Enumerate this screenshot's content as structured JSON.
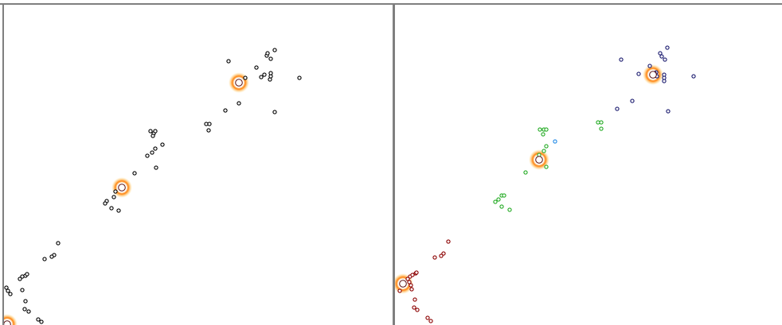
{
  "colors": {
    "border": "#7f7f7f",
    "background": "#ffffff",
    "point_default": "#000000",
    "cluster_red": "#8b0000",
    "cluster_green": "#22aa22",
    "cluster_blue": "#1a1a6e",
    "cluster_cyan": "#1e88e5",
    "halo": "#ff8a00"
  },
  "chart_data": [
    {
      "type": "scatter",
      "title": "",
      "xlabel": "",
      "ylabel": "",
      "grid": false,
      "xlim": [
        0,
        488
      ],
      "ylim": [
        0,
        403
      ],
      "series": [
        {
          "color": "#000000",
          "points": [
            [
              282,
              71
            ],
            [
              330,
              64
            ],
            [
              331,
              61
            ],
            [
              335,
              68
            ],
            [
              340,
              57
            ],
            [
              371,
              92
            ],
            [
              303,
              92
            ],
            [
              317,
              79
            ],
            [
              323,
              91
            ],
            [
              327,
              88
            ],
            [
              334,
              94
            ],
            [
              335,
              90
            ],
            [
              335,
              86
            ],
            [
              340,
              135
            ],
            [
              295,
              124
            ],
            [
              278,
              133
            ],
            [
              254,
              150
            ],
            [
              258,
              150
            ],
            [
              257,
              158
            ],
            [
              184,
              159
            ],
            [
              188,
              162
            ],
            [
              190,
              159
            ],
            [
              187,
              165
            ],
            [
              199,
              176
            ],
            [
              190,
              181
            ],
            [
              186,
              186
            ],
            [
              180,
              190
            ],
            [
              191,
              205
            ],
            [
              164,
              212
            ],
            [
              140,
              235
            ],
            [
              138,
              242
            ],
            [
              129,
              247
            ],
            [
              127,
              250
            ],
            [
              135,
              256
            ],
            [
              144,
              259
            ],
            [
              68,
              300
            ],
            [
              63,
              315
            ],
            [
              60,
              317
            ],
            [
              51,
              320
            ],
            [
              20,
              345
            ],
            [
              23,
              342
            ],
            [
              27,
              341
            ],
            [
              29,
              339
            ],
            [
              3,
              356
            ],
            [
              5,
              360
            ],
            [
              8,
              364
            ],
            [
              23,
              359
            ],
            [
              27,
              373
            ],
            [
              26,
              383
            ],
            [
              31,
              386
            ],
            [
              43,
              396
            ],
            [
              47,
              399
            ]
          ]
        }
      ],
      "centroids": [
        [
          295,
          98
        ],
        [
          148,
          230
        ],
        [
          4,
          402
        ]
      ]
    },
    {
      "type": "scatter",
      "title": "",
      "xlabel": "",
      "ylabel": "",
      "grid": false,
      "xlim": [
        0,
        486
      ],
      "ylim": [
        0,
        403
      ],
      "series": [
        {
          "color": "#1a1a6e",
          "points": [
            [
              284,
              69
            ],
            [
              333,
              61
            ],
            [
              335,
              65
            ],
            [
              342,
              54
            ],
            [
              339,
              69
            ],
            [
              375,
              90
            ],
            [
              306,
              87
            ],
            [
              320,
              77
            ],
            [
              325,
              88
            ],
            [
              328,
              85
            ],
            [
              338,
              88
            ],
            [
              338,
              92
            ],
            [
              338,
              96
            ],
            [
              343,
              134
            ],
            [
              298,
              121
            ],
            [
              279,
              131
            ],
            [
              326,
              86
            ],
            [
              329,
              90
            ]
          ]
        },
        {
          "color": "#22aa22",
          "points": [
            [
              255,
              148
            ],
            [
              259,
              148
            ],
            [
              259,
              156
            ],
            [
              182,
              157
            ],
            [
              187,
              157
            ],
            [
              190,
              157
            ],
            [
              186,
              163
            ],
            [
              190,
              178
            ],
            [
              187,
              184
            ],
            [
              181,
              189
            ],
            [
              190,
              204
            ],
            [
              164,
              211
            ],
            [
              134,
              240
            ],
            [
              137,
              240
            ],
            [
              130,
              245
            ],
            [
              126,
              248
            ],
            [
              134,
              254
            ],
            [
              144,
              258
            ]
          ]
        },
        {
          "color": "#1e88e5",
          "points": [
            [
              201,
              172
            ]
          ]
        },
        {
          "color": "#8b0000",
          "points": [
            [
              67,
              298
            ],
            [
              61,
              313
            ],
            [
              58,
              316
            ],
            [
              50,
              318
            ],
            [
              19,
              342
            ],
            [
              22,
              340
            ],
            [
              26,
              338
            ],
            [
              27,
              337
            ],
            [
              16,
              345
            ],
            [
              18,
              349
            ],
            [
              20,
              353
            ],
            [
              6,
              360
            ],
            [
              21,
              358
            ],
            [
              25,
              371
            ],
            [
              24,
              381
            ],
            [
              28,
              384
            ],
            [
              41,
              394
            ],
            [
              45,
              398
            ]
          ]
        }
      ],
      "centroids": [
        [
          324,
          88
        ],
        [
          181,
          195
        ],
        [
          10,
          351
        ]
      ]
    }
  ]
}
